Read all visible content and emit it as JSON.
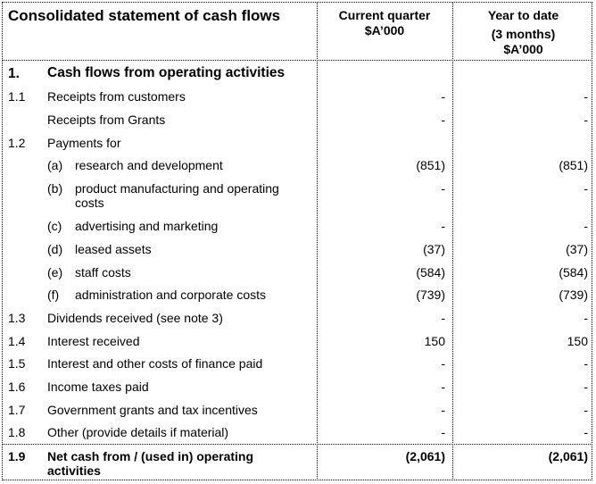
{
  "title": "Consolidated statement of cash flows",
  "col1": {
    "line1": "Current quarter",
    "line2": "$A’000"
  },
  "col2": {
    "line1": "Year to date",
    "line2": "(3 months)",
    "line3": "$A’000"
  },
  "rows": [
    {
      "num": "1.",
      "label": "Cash flows from operating activities",
      "v1": "",
      "v2": ""
    },
    {
      "num": "1.1",
      "label": "Receipts from customers",
      "v1": "-",
      "v2": "-"
    },
    {
      "num": "",
      "label": "Receipts from Grants",
      "v1": "-",
      "v2": "-"
    },
    {
      "num": "1.2",
      "label": "Payments for",
      "v1": "",
      "v2": ""
    },
    {
      "letter": "(a)",
      "label": "research and development",
      "v1": "(851)",
      "v2": "(851)"
    },
    {
      "letter": "(b)",
      "label": "product manufacturing and operating",
      "label2": "costs",
      "v1": "-",
      "v2": "-"
    },
    {
      "letter": "(c)",
      "label": "advertising and marketing",
      "v1": "-",
      "v2": "-"
    },
    {
      "letter": "(d)",
      "label": "leased assets",
      "v1": "(37)",
      "v2": "(37)"
    },
    {
      "letter": "(e)",
      "label": "staff costs",
      "v1": "(584)",
      "v2": "(584)"
    },
    {
      "letter": "(f)",
      "label": "administration and corporate costs",
      "v1": "(739)",
      "v2": "(739)"
    },
    {
      "num": "1.3",
      "label": "Dividends received (see note 3)",
      "v1": "-",
      "v2": "-"
    },
    {
      "num": "1.4",
      "label": "Interest received",
      "v1": "150",
      "v2": "150"
    },
    {
      "num": "1.5",
      "label": "Interest and other costs of finance paid",
      "v1": "-",
      "v2": "-"
    },
    {
      "num": "1.6",
      "label": "Income taxes paid",
      "v1": "-",
      "v2": "-"
    },
    {
      "num": "1.7",
      "label": "Government grants and tax incentives",
      "v1": "-",
      "v2": "-"
    },
    {
      "num": "1.8",
      "label": "Other (provide details if material)",
      "v1": "-",
      "v2": "-"
    },
    {
      "num": "1.9",
      "label": "Net cash from / (used in) operating",
      "label2": "activities",
      "v1": "(2,061)",
      "v2": "(2,061)"
    }
  ]
}
